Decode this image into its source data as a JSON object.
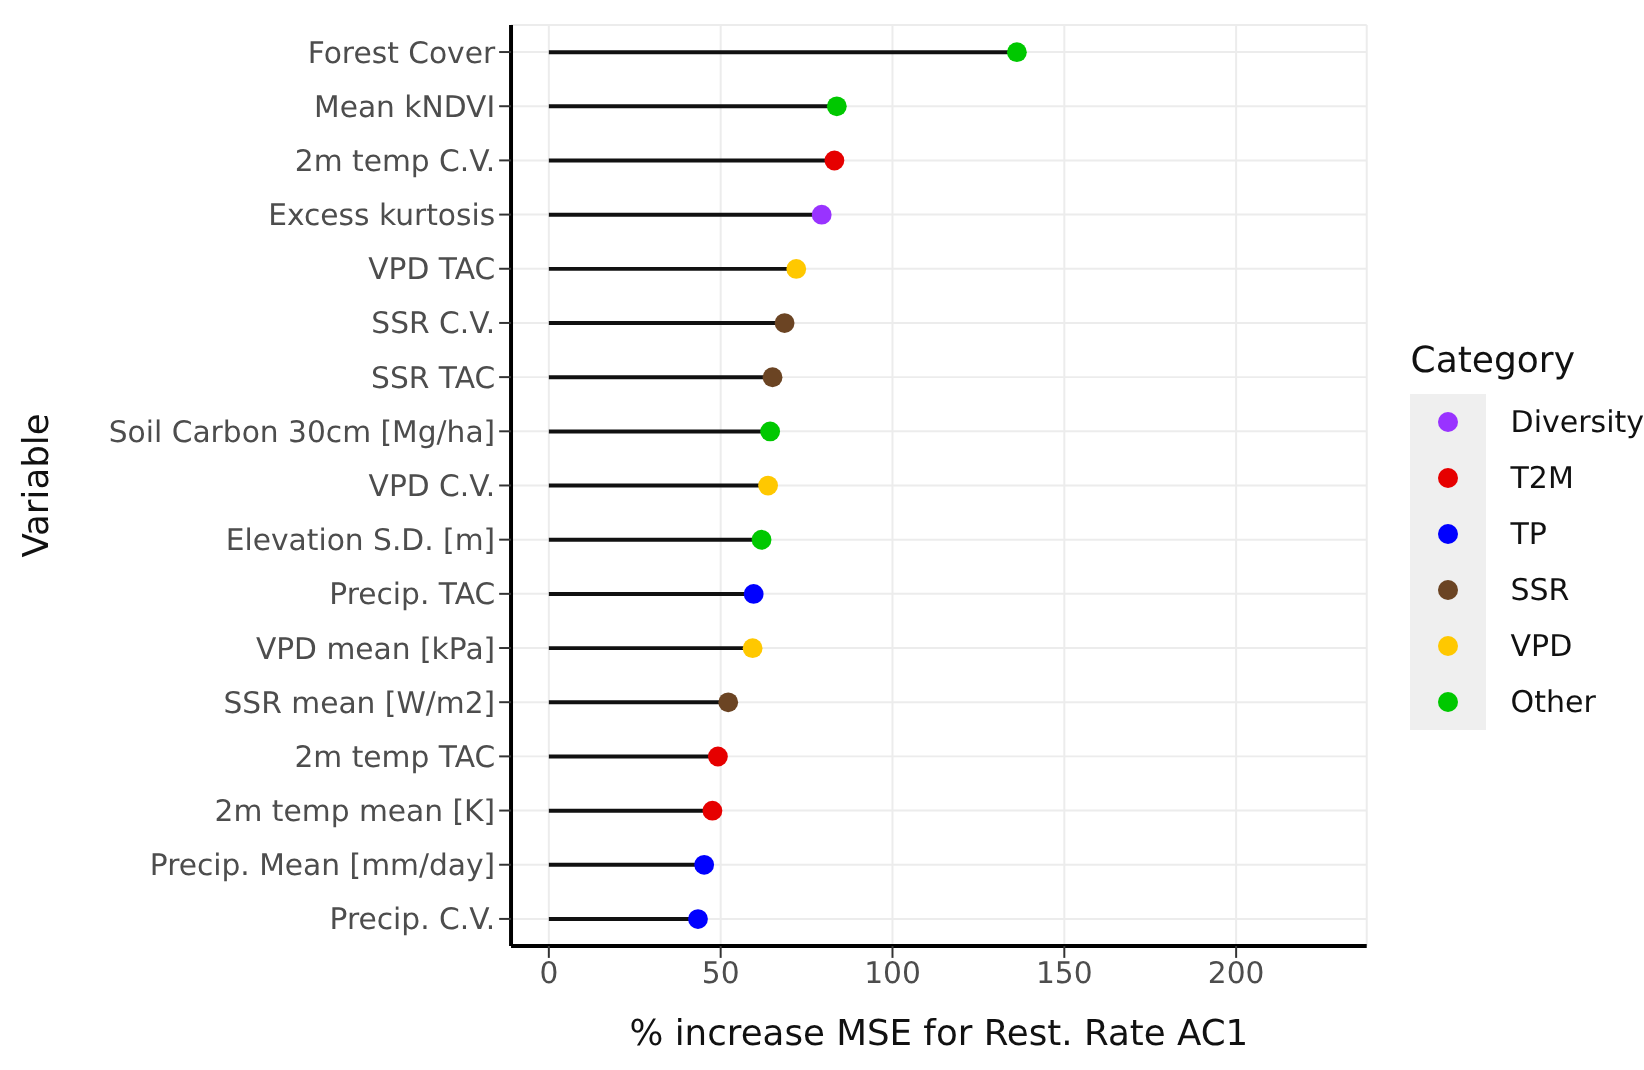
{
  "chart_data": {
    "type": "lollipop",
    "orientation": "horizontal",
    "xlabel": "% increase MSE for Rest. Rate AC1",
    "ylabel": "Variable",
    "legend_title": "Category",
    "legend": "right",
    "grid": true,
    "marker": "circle",
    "categories": [
      "Forest Cover",
      "Mean kNDVI",
      "2m temp C.V.",
      "Excess kurtosis",
      "VPD TAC",
      "SSR C.V.",
      "SSR TAC",
      "Soil Carbon 30cm [Mg/ha]",
      "VPD C.V.",
      "Elevation S.D. [m]",
      "Precip. TAC",
      "VPD mean [kPa]",
      "SSR mean [W/m2]",
      "2m temp TAC",
      "2m temp mean [K]",
      "Precip. Mean [mm/day]",
      "Precip. C.V."
    ],
    "xlim": [
      -11,
      238
    ],
    "xticks": [
      0,
      50,
      100,
      150,
      200
    ],
    "series": [
      {
        "name": "Diversity",
        "color": "#9933ff",
        "values": [
          null,
          null,
          null,
          79.4,
          null,
          null,
          null,
          null,
          null,
          null,
          null,
          null,
          null,
          null,
          null,
          null,
          null
        ]
      },
      {
        "name": "T2M",
        "color": "#e60000",
        "values": [
          null,
          null,
          83.1,
          null,
          null,
          null,
          null,
          null,
          null,
          null,
          null,
          null,
          null,
          49.2,
          47.6,
          null,
          null
        ]
      },
      {
        "name": "TP",
        "color": "#0000ff",
        "values": [
          null,
          null,
          null,
          null,
          null,
          null,
          null,
          null,
          null,
          null,
          59.6,
          null,
          null,
          null,
          null,
          45.2,
          43.4
        ]
      },
      {
        "name": "SSR",
        "color": "#6b4423",
        "values": [
          null,
          null,
          null,
          null,
          null,
          68.6,
          65.1,
          null,
          null,
          null,
          null,
          null,
          52.2,
          null,
          null,
          null,
          null
        ]
      },
      {
        "name": "VPD",
        "color": "#ffc800",
        "values": [
          null,
          null,
          null,
          null,
          72,
          null,
          null,
          null,
          63.8,
          null,
          null,
          59.3,
          null,
          null,
          null,
          null,
          null
        ]
      },
      {
        "name": "Other",
        "color": "#00c800",
        "values": [
          136.2,
          83.8,
          null,
          null,
          null,
          null,
          null,
          64.4,
          null,
          61.9,
          null,
          null,
          null,
          null,
          null,
          null,
          null
        ]
      }
    ]
  }
}
